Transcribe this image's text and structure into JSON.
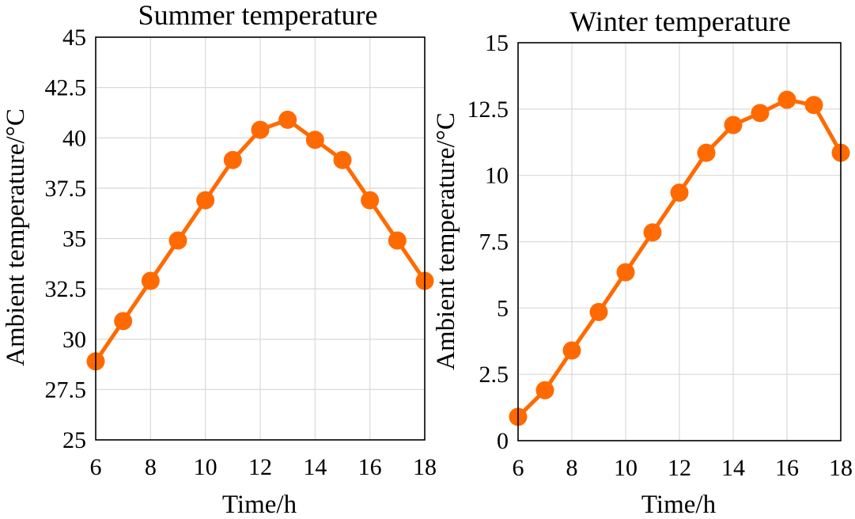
{
  "chart_data": [
    {
      "type": "line",
      "title": "Summer temperature",
      "xlabel": "Time/h",
      "ylabel": "Ambient temperature/°C",
      "xlim": [
        6,
        18
      ],
      "ylim": [
        25,
        45
      ],
      "xticks": [
        6,
        8,
        10,
        12,
        14,
        16,
        18
      ],
      "xtick_labels": [
        "6",
        "8",
        "10",
        "12",
        "14",
        "16",
        "18"
      ],
      "yticks": [
        25,
        27.5,
        30,
        32.5,
        35,
        37.5,
        40,
        42.5,
        45
      ],
      "ytick_labels": [
        "25",
        "27.5",
        "30",
        "32.5",
        "35",
        "37.5",
        "40",
        "42.5",
        "45"
      ],
      "grid": true,
      "color": "#ff6a00",
      "series": [
        {
          "x": [
            6,
            7,
            8,
            9,
            10,
            11,
            12,
            13,
            14,
            15,
            16,
            17,
            18
          ],
          "y": [
            28.9,
            30.9,
            32.9,
            34.9,
            36.9,
            38.9,
            40.4,
            40.9,
            39.9,
            38.9,
            36.9,
            34.9,
            32.9
          ]
        }
      ]
    },
    {
      "type": "line",
      "title": "Winter temperature",
      "xlabel": "Time/h",
      "ylabel": "Ambient temperature/°C",
      "xlim": [
        6,
        18
      ],
      "ylim": [
        0,
        15
      ],
      "xticks": [
        6,
        8,
        10,
        12,
        14,
        16,
        18
      ],
      "xtick_labels": [
        "6",
        "8",
        "10",
        "12",
        "14",
        "16",
        "18"
      ],
      "yticks": [
        0,
        2.5,
        5,
        7.5,
        10,
        12.5,
        15
      ],
      "ytick_labels": [
        "0",
        "2.5",
        "5",
        "7.5",
        "10",
        "12.5",
        "15"
      ],
      "grid": true,
      "color": "#ff6a00",
      "series": [
        {
          "x": [
            6,
            7,
            8,
            9,
            10,
            11,
            12,
            13,
            14,
            15,
            16,
            17,
            18
          ],
          "y": [
            0.9,
            1.9,
            3.4,
            4.85,
            6.35,
            7.85,
            9.35,
            10.85,
            11.9,
            12.35,
            12.85,
            12.65,
            10.85
          ]
        }
      ]
    }
  ]
}
